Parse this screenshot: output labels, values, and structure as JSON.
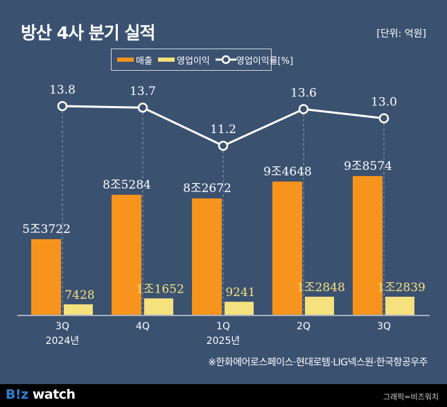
{
  "title": "방산 4사 분기 실적",
  "unit": "[단위: 억원]",
  "note": "※한화에어로스페이스·현대로템·LIG넥스원·한국항공우주",
  "footer": {
    "logo_prefix": "B!z",
    "logo_suffix": " watch",
    "credit": "그래픽=비즈워치"
  },
  "colors": {
    "background": "#3b5170",
    "revenue": "#f7941d",
    "operating_profit": "#f5e17e",
    "margin_line": "#ffffff"
  },
  "chart_data": {
    "type": "bar",
    "title": "방산 4사 분기 실적",
    "unit": "억원",
    "categories": [
      "3Q",
      "4Q",
      "1Q",
      "2Q",
      "3Q"
    ],
    "category_years": [
      "2024년",
      "",
      "2025년",
      "",
      ""
    ],
    "legend": [
      "매출",
      "영업이익",
      "영업이익률[%]"
    ],
    "legend_placement": "top-center",
    "grid": false,
    "series": [
      {
        "name": "매출",
        "type": "bar",
        "values": [
          53722,
          85284,
          82672,
          94648,
          98574
        ],
        "labels": [
          "5조3722",
          "8조5284",
          "8조2672",
          "9조4648",
          "9조8574"
        ]
      },
      {
        "name": "영업이익",
        "type": "bar",
        "values": [
          7428,
          11652,
          9241,
          12848,
          12839
        ],
        "labels": [
          "7428",
          "1조1652",
          "9241",
          "1조2848",
          "1조2839"
        ]
      },
      {
        "name": "영업이익률[%]",
        "type": "line",
        "values": [
          13.8,
          13.7,
          11.2,
          13.6,
          13.0
        ],
        "labels": [
          "13.8",
          "13.7",
          "11.2",
          "13.6",
          "13.0"
        ]
      }
    ]
  }
}
